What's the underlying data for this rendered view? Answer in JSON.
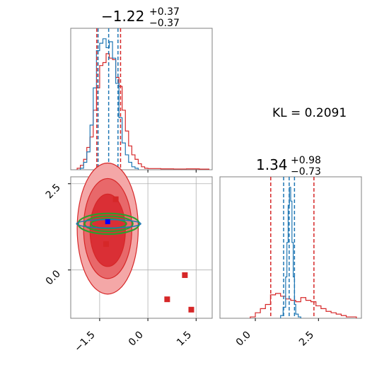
{
  "chart_data": [
    {
      "type": "histogram",
      "panel": "top-left",
      "title": {
        "value": "−1.22",
        "upper": "+0.37",
        "lower": "−0.37"
      },
      "xlim": [
        -2.4,
        2.0
      ],
      "x_ticks": [
        -1.5,
        0.0,
        1.5
      ],
      "series": [
        {
          "color": "#d62728",
          "edges": [
            -2.2,
            -2.1,
            -2.0,
            -1.9,
            -1.8,
            -1.7,
            -1.6,
            -1.5,
            -1.4,
            -1.3,
            -1.2,
            -1.1,
            -1.0,
            -0.9,
            -0.8,
            -0.7,
            -0.6,
            -0.5,
            -0.4,
            -0.3,
            -0.2,
            -0.1,
            0.0,
            0.4,
            0.8,
            1.2,
            1.6,
            1.9
          ],
          "counts": [
            0.01,
            0.03,
            0.07,
            0.15,
            0.22,
            0.4,
            0.55,
            0.7,
            0.72,
            0.78,
            0.75,
            0.74,
            0.62,
            0.56,
            0.4,
            0.26,
            0.16,
            0.1,
            0.07,
            0.04,
            0.02,
            0.01,
            0.008,
            0.006,
            0.005,
            0.006,
            0.004
          ]
        },
        {
          "color": "#1f77b4",
          "edges": [
            -2.1,
            -2.0,
            -1.9,
            -1.8,
            -1.7,
            -1.6,
            -1.5,
            -1.4,
            -1.3,
            -1.2,
            -1.1,
            -1.0,
            -0.9,
            -0.8,
            -0.7,
            -0.6,
            -0.5,
            -0.4,
            -0.3
          ],
          "counts": [
            0.01,
            0.05,
            0.12,
            0.3,
            0.55,
            0.8,
            0.85,
            0.88,
            0.82,
            0.86,
            0.75,
            0.58,
            0.35,
            0.18,
            0.1,
            0.05,
            0.02,
            0.01
          ]
        }
      ],
      "quantile_lines": [
        {
          "color": "#1f77b4",
          "values": [
            -1.55,
            -1.22,
            -0.93
          ]
        },
        {
          "color": "#d62728",
          "values": [
            -1.59,
            -0.85
          ]
        }
      ]
    },
    {
      "type": "scatter",
      "panel": "bottom-left",
      "xlim": [
        -2.4,
        2.0
      ],
      "ylim": [
        -1.4,
        2.7
      ],
      "x_ticks": [
        -1.5,
        0.0,
        1.5
      ],
      "y_ticks": [
        0.0,
        2.5
      ],
      "grid": true,
      "red_contours": {
        "color": "#d62728",
        "levels": [
          {
            "center": [
              -1.25,
              1.2
            ],
            "rx": 0.95,
            "ry": 1.9,
            "fill": "#f4a7a7"
          },
          {
            "center": [
              -1.25,
              1.2
            ],
            "rx": 0.75,
            "ry": 1.45,
            "fill": "#e8686a"
          },
          {
            "center": [
              -1.25,
              1.15
            ],
            "rx": 0.55,
            "ry": 1.05,
            "fill": "#da2f35"
          }
        ]
      },
      "green_ellipses": {
        "color": "#2ca02c",
        "center": [
          -1.22,
          1.34
        ],
        "rx": [
          0.95,
          0.75,
          0.55
        ],
        "ry": [
          0.3,
          0.22,
          0.14
        ]
      },
      "blue_ellipse": {
        "color": "#1f77b4",
        "center": [
          -1.22,
          1.34
        ],
        "rx": 1.0,
        "ry": 0.12
      },
      "red_squares": [
        [
          -1.0,
          2.05
        ],
        [
          -1.3,
          0.75
        ],
        [
          0.6,
          -0.85
        ],
        [
          1.15,
          -0.15
        ],
        [
          1.35,
          -1.15
        ]
      ],
      "blue_square": [
        -1.25,
        1.4
      ]
    },
    {
      "type": "histogram",
      "panel": "bottom-right",
      "title": {
        "value": "1.34",
        "upper": "+0.98",
        "lower": "−0.73"
      },
      "xlim": [
        -1.4,
        4.2
      ],
      "x_ticks": [
        0.0,
        2.5
      ],
      "series": [
        {
          "color": "#d62728",
          "edges": [
            -0.2,
            0.0,
            0.2,
            0.4,
            0.6,
            0.8,
            1.0,
            1.2,
            1.4,
            1.6,
            1.8,
            2.0,
            2.2,
            2.4,
            2.6,
            2.8,
            3.0,
            3.2,
            3.4,
            3.6,
            3.8,
            4.0
          ],
          "counts": [
            0.01,
            0.04,
            0.07,
            0.1,
            0.17,
            0.18,
            0.16,
            0.14,
            0.13,
            0.12,
            0.15,
            0.13,
            0.12,
            0.09,
            0.07,
            0.05,
            0.04,
            0.03,
            0.02,
            0.01,
            0.01
          ]
        },
        {
          "color": "#1f77b4",
          "edges": [
            1.0,
            1.1,
            1.2,
            1.25,
            1.3,
            1.35,
            1.4,
            1.45,
            1.5,
            1.55,
            1.6,
            1.7,
            1.8
          ],
          "counts": [
            0.02,
            0.08,
            0.3,
            0.55,
            0.82,
            0.95,
            0.85,
            0.55,
            0.3,
            0.1,
            0.03,
            0.01
          ]
        }
      ],
      "quantile_lines": [
        {
          "color": "#1f77b4",
          "values": [
            1.12,
            1.34,
            1.55
          ]
        },
        {
          "color": "#d62728",
          "values": [
            0.61,
            2.32
          ]
        }
      ]
    }
  ],
  "annotation": {
    "kl_label": "KL = 0.2091"
  },
  "colors": {
    "red": "#d62728",
    "blue": "#1f77b4",
    "green": "#2ca02c",
    "grid": "#b0b0b0",
    "axis": "#808080"
  }
}
